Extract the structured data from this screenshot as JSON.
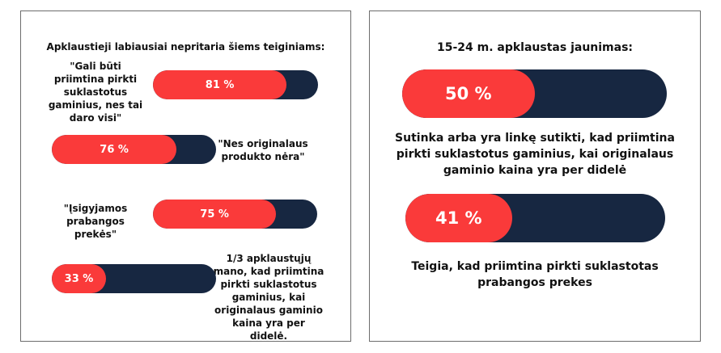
{
  "colors": {
    "fill": "#fa3a3a",
    "track": "#172741",
    "text": "#111111",
    "border": "#6d6d6d"
  },
  "left": {
    "heading": "Apklaustieji labiausiai nepritaria šiems teiginiams:",
    "items": [
      {
        "label": "\"Gali būti priimtina pirkti suklastotus gaminius, nes tai daro visi\"",
        "value_label": "81 %"
      },
      {
        "label": "\"Nes originalaus produkto nėra\"",
        "value_label": "76 %"
      },
      {
        "label": "\"Įsigyjamos prabangos prekės\"",
        "value_label": "75 %"
      },
      {
        "label": "1/3 apklaustųjų mano, kad priimtina pirkti suklastotus gaminius, kai originalaus gaminio kaina yra per didelė.",
        "value_label": "33 %"
      }
    ]
  },
  "right": {
    "heading": "15-24 m. apklaustas jaunimas:",
    "items": [
      {
        "value_label": "50 %",
        "caption": "Sutinka arba yra linkę sutikti, kad priimtina pirkti suklastotus gaminius, kai originalaus gaminio kaina yra per didelė"
      },
      {
        "value_label": "41 %",
        "caption": "Teigia, kad  priimtina pirkti suklastotas prabangos prekes"
      }
    ]
  },
  "chart_data": [
    {
      "type": "bar",
      "title": "Apklaustieji labiausiai nepritaria šiems teiginiams:",
      "categories": [
        "\"Gali būti priimtina pirkti suklastotus gaminius, nes tai daro visi\"",
        "\"Nes originalaus produkto nėra\"",
        "\"Įsigyjamos prabangos prekės\"",
        "1/3 apklaustųjų mano, kad priimtina pirkti suklastotus gaminius, kai originalaus gaminio kaina yra per didelė."
      ],
      "values": [
        81,
        76,
        75,
        33
      ],
      "ylim": [
        0,
        100
      ]
    },
    {
      "type": "bar",
      "title": "15-24 m. apklaustas jaunimas:",
      "categories": [
        "Sutinka arba yra linkę sutikti, kad priimtina pirkti suklastotus gaminius, kai originalaus gaminio kaina yra per didelė",
        "Teigia, kad  priimtina pirkti suklastotas prabangos prekes"
      ],
      "values": [
        50,
        41
      ],
      "ylim": [
        0,
        100
      ]
    }
  ]
}
